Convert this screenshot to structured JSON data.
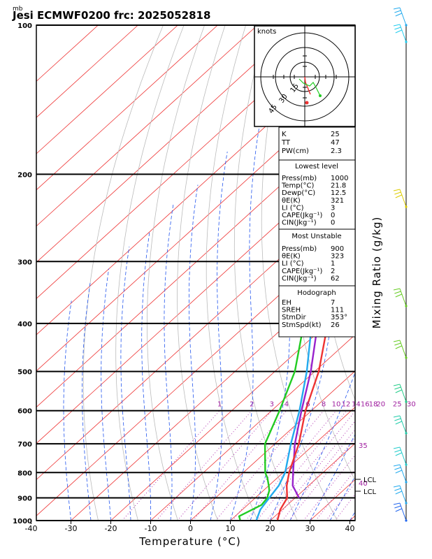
{
  "header": {
    "units_label": "mb",
    "title": "Jesi ECMWF0200 frc: 2025052818"
  },
  "axes": {
    "xlabel": "Temperature (°C)",
    "right_label": "Mixing Ratio (g/kg)",
    "temperature_ticks": [
      "-40",
      "-30",
      "-20",
      "-10",
      "0",
      "10",
      "20",
      "30",
      "40"
    ],
    "pressure_ticks": [
      "100",
      "200",
      "300",
      "400",
      "500",
      "600",
      "700",
      "800",
      "900",
      "1000"
    ]
  },
  "mixing_ratio_labels": [
    "1",
    "2",
    "3",
    "4",
    "6",
    "8",
    "10",
    "12",
    "14",
    "16",
    "18",
    "20",
    "25",
    "30"
  ],
  "extra_labels": {
    "r35": "35",
    "r40": "40"
  },
  "lcl": {
    "upper": "LCL",
    "lower": "LCL"
  },
  "hodograph": {
    "units": "knots",
    "ring_labels": [
      "15",
      "30",
      "45"
    ]
  },
  "indices": {
    "rows": [
      {
        "label": "K",
        "value": "25"
      },
      {
        "label": "TT",
        "value": "47"
      },
      {
        "label": "PW(cm)",
        "value": "2.3"
      }
    ]
  },
  "lowest_level": {
    "title": "Lowest level",
    "rows": [
      {
        "label": "Press(mb)",
        "value": "1000"
      },
      {
        "label": "Temp(°C)",
        "value": "21.8"
      },
      {
        "label": "Dewp(°C)",
        "value": "12.5"
      },
      {
        "label": "θE(K)",
        "value": "321"
      },
      {
        "label": "LI (°C)",
        "value": "3"
      },
      {
        "label": "CAPE(Jkg⁻¹)",
        "value": "0"
      },
      {
        "label": "CIN(Jkg⁻¹)",
        "value": "0"
      }
    ]
  },
  "most_unstable": {
    "title": "Most Unstable",
    "rows": [
      {
        "label": "Press(mb)",
        "value": "900"
      },
      {
        "label": "θE(K)",
        "value": "323"
      },
      {
        "label": "LI (°C)",
        "value": "1"
      },
      {
        "label": "CAPE(Jkg⁻¹)",
        "value": "2"
      },
      {
        "label": "CIN(Jkg⁻¹)",
        "value": "62"
      }
    ]
  },
  "hodograph_box": {
    "title": "Hodograph",
    "rows": [
      {
        "label": "EH",
        "value": "7"
      },
      {
        "label": "SREH",
        "value": "111"
      },
      {
        "label": "StmDir",
        "value": "353°"
      },
      {
        "label": "StmSpd(kt)",
        "value": "26"
      }
    ]
  },
  "colors": {
    "temperature": "#ee3333",
    "dewpoint": "#22cc22",
    "parcel": "#9922cc",
    "wetbulb": "#22aaee",
    "isotherm": "#ee3333",
    "dry_adiabat": "#bbbbbb",
    "moist_adiabat": "#2255ee",
    "mixing_ratio": "#aa22aa"
  },
  "chart_data": {
    "type": "line",
    "x_range": [
      -40,
      40
    ],
    "pressure_range": [
      100,
      1000
    ],
    "y_scale": "log-pressure",
    "series": [
      {
        "key": "temperature",
        "points": [
          [
            1000,
            21.8
          ],
          [
            950,
            19.5
          ],
          [
            900,
            18.0
          ],
          [
            850,
            14.5
          ],
          [
            800,
            11.5
          ],
          [
            700,
            6.0
          ],
          [
            600,
            -1.5
          ],
          [
            500,
            -9.0
          ],
          [
            400,
            -20.0
          ],
          [
            300,
            -33.0
          ],
          [
            250,
            -41.0
          ],
          [
            200,
            -35.0
          ],
          [
            150,
            -28.0
          ],
          [
            100,
            -18.0
          ]
        ]
      },
      {
        "key": "dewpoint",
        "points": [
          [
            1000,
            12.5
          ],
          [
            980,
            11.0
          ],
          [
            960,
            12.0
          ],
          [
            930,
            13.5
          ],
          [
            900,
            13.0
          ],
          [
            870,
            11.5
          ],
          [
            850,
            10.0
          ],
          [
            820,
            7.5
          ],
          [
            800,
            5.5
          ],
          [
            700,
            -2.5
          ],
          [
            600,
            -8.0
          ],
          [
            500,
            -15.0
          ],
          [
            400,
            -26.0
          ],
          [
            300,
            -43.0
          ],
          [
            270,
            -48.0
          ],
          [
            250,
            -53.0
          ],
          [
            200,
            -63.0
          ],
          [
            150,
            -70.0
          ],
          [
            100,
            -80.0
          ]
        ]
      },
      {
        "key": "parcel",
        "points": [
          [
            900,
            21.0
          ],
          [
            850,
            16.0
          ],
          [
            800,
            12.5
          ],
          [
            700,
            5.0
          ],
          [
            600,
            -2.5
          ],
          [
            500,
            -11.0
          ],
          [
            400,
            -22.5
          ],
          [
            300,
            -38.0
          ],
          [
            250,
            -48.0
          ],
          [
            200,
            -59.0
          ],
          [
            150,
            -73.0
          ],
          [
            125,
            -81.0
          ]
        ]
      },
      {
        "key": "wetbulb",
        "points": [
          [
            1000,
            16.5
          ],
          [
            950,
            14.5
          ],
          [
            900,
            13.5
          ],
          [
            850,
            12.5
          ],
          [
            800,
            10.5
          ],
          [
            700,
            4.0
          ],
          [
            600,
            -3.0
          ],
          [
            500,
            -12.0
          ],
          [
            400,
            -24.0
          ],
          [
            300,
            -40.0
          ],
          [
            250,
            -50.0
          ],
          [
            200,
            -60.0
          ],
          [
            150,
            -72.0
          ],
          [
            110,
            -82.0
          ]
        ]
      }
    ]
  }
}
